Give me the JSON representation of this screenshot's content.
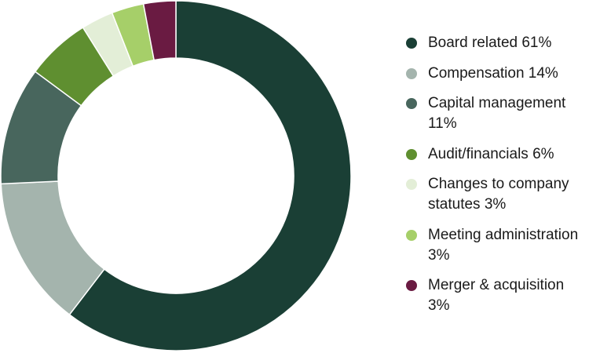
{
  "chart_data": {
    "type": "pie",
    "donut": true,
    "legend_position": "right",
    "series": [
      {
        "name": "Board related",
        "label": "Board related 61%",
        "value": 61,
        "color": "#1a3f35"
      },
      {
        "name": "Compensation",
        "label": "Compensation 14%",
        "value": 14,
        "color": "#a4b4ad"
      },
      {
        "name": "Capital management",
        "label": "Capital management 11%",
        "value": 11,
        "color": "#48665d"
      },
      {
        "name": "Audit/financials",
        "label": "Audit/financials 6%",
        "value": 6,
        "color": "#5f8f30"
      },
      {
        "name": "Changes to company statutes",
        "label": "Changes to company statutes 3%",
        "value": 3,
        "color": "#e3eed7"
      },
      {
        "name": "Meeting administration",
        "label": "Meeting administration 3%",
        "value": 3,
        "color": "#a6cf69"
      },
      {
        "name": "Merger & acquisition",
        "label": "Merger & acquisition 3%",
        "value": 3,
        "color": "#6a1b42"
      }
    ]
  }
}
